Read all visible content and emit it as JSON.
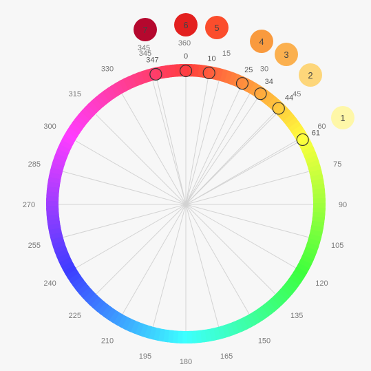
{
  "degree_labels": [
    "0",
    "15",
    "30",
    "45",
    "60",
    "75",
    "90",
    "105",
    "120",
    "135",
    "150",
    "165",
    "180",
    "195",
    "210",
    "225",
    "240",
    "255",
    "270",
    "285",
    "300",
    "315",
    "330",
    "345"
  ],
  "markers": [
    {
      "hue": 347,
      "label": "347"
    },
    {
      "hue": 0,
      "label": "0"
    },
    {
      "hue": 10,
      "label": "10"
    },
    {
      "hue": 25,
      "label": "25"
    },
    {
      "hue": 34,
      "label": "34"
    },
    {
      "hue": 44,
      "label": "44"
    },
    {
      "hue": 61,
      "label": "61"
    }
  ],
  "swatches": [
    {
      "label": "7",
      "color": "#b5082e",
      "hue_label": "345"
    },
    {
      "label": "6",
      "color": "#e3201f",
      "hue_label": "360"
    },
    {
      "label": "5",
      "color": "#fb4d2c"
    },
    {
      "label": "4",
      "color": "#f99a3e"
    },
    {
      "label": "3",
      "color": "#fbb04f"
    },
    {
      "label": "2",
      "color": "#fdd67a"
    },
    {
      "label": "1",
      "color": "#fef7a8"
    }
  ]
}
